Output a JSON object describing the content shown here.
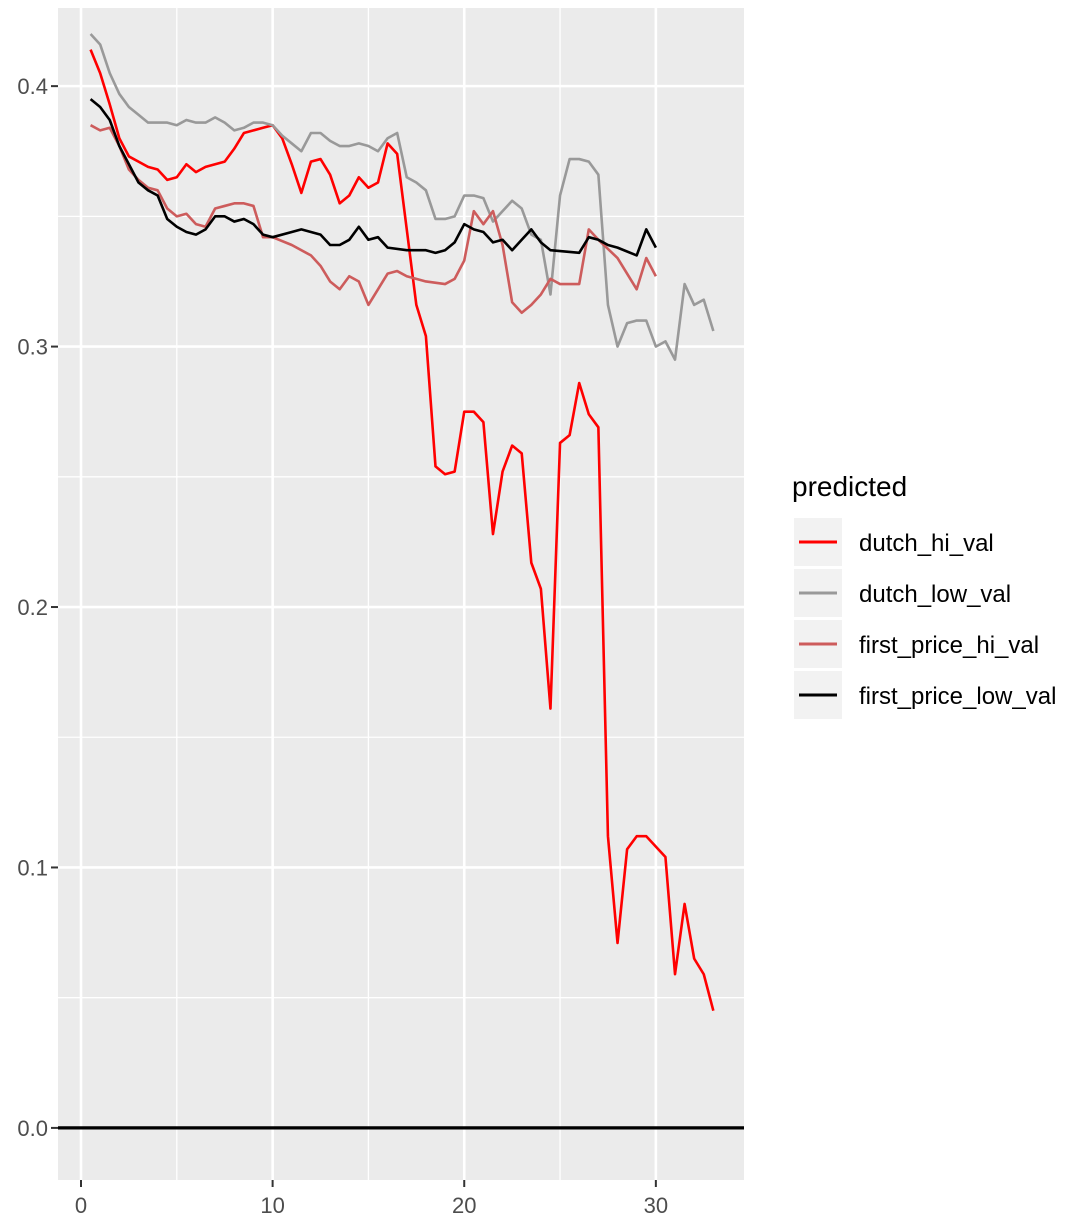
{
  "chart_data": {
    "type": "line",
    "title": "",
    "xlabel": "",
    "ylabel": "",
    "xlim": [
      -1.2,
      34.6
    ],
    "ylim": [
      -0.02,
      0.43
    ],
    "x_ticks": [
      0,
      10,
      20,
      30
    ],
    "x_tick_labels": [
      "0",
      "10",
      "20",
      "30"
    ],
    "y_ticks": [
      0.0,
      0.1,
      0.2,
      0.3,
      0.4
    ],
    "y_tick_labels": [
      "0.0",
      "0.1",
      "0.2",
      "0.3",
      "0.4"
    ],
    "grid": true,
    "hline": {
      "y": 0.0,
      "color": "#000000"
    },
    "legend": {
      "title": "predicted",
      "position": "right"
    },
    "series": [
      {
        "name": "dutch_hi_val",
        "color": "#ff0000",
        "points": [
          [
            0.5,
            0.414
          ],
          [
            1.0,
            0.405
          ],
          [
            1.5,
            0.393
          ],
          [
            2.0,
            0.38
          ],
          [
            2.5,
            0.373
          ],
          [
            3.0,
            0.371
          ],
          [
            3.5,
            0.369
          ],
          [
            4.0,
            0.368
          ],
          [
            4.5,
            0.364
          ],
          [
            5.0,
            0.365
          ],
          [
            5.5,
            0.37
          ],
          [
            6.0,
            0.367
          ],
          [
            6.5,
            0.369
          ],
          [
            7.0,
            0.37
          ],
          [
            7.5,
            0.371
          ],
          [
            8.0,
            0.376
          ],
          [
            8.5,
            0.382
          ],
          [
            9.0,
            0.383
          ],
          [
            9.5,
            0.384
          ],
          [
            10.0,
            0.385
          ],
          [
            10.5,
            0.38
          ],
          [
            11.0,
            0.37
          ],
          [
            11.5,
            0.359
          ],
          [
            12.0,
            0.371
          ],
          [
            12.5,
            0.372
          ],
          [
            13.0,
            0.366
          ],
          [
            13.5,
            0.355
          ],
          [
            14.0,
            0.358
          ],
          [
            14.5,
            0.365
          ],
          [
            15.0,
            0.361
          ],
          [
            15.5,
            0.363
          ],
          [
            16.0,
            0.378
          ],
          [
            16.5,
            0.374
          ],
          [
            17.0,
            0.345
          ],
          [
            17.5,
            0.316
          ],
          [
            18.0,
            0.304
          ],
          [
            18.5,
            0.254
          ],
          [
            19.0,
            0.251
          ],
          [
            19.5,
            0.252
          ],
          [
            20.0,
            0.275
          ],
          [
            20.5,
            0.275
          ],
          [
            21.0,
            0.271
          ],
          [
            21.5,
            0.228
          ],
          [
            22.0,
            0.252
          ],
          [
            22.5,
            0.262
          ],
          [
            23.0,
            0.259
          ],
          [
            23.5,
            0.217
          ],
          [
            24.0,
            0.207
          ],
          [
            24.5,
            0.161
          ],
          [
            25.0,
            0.263
          ],
          [
            25.5,
            0.266
          ],
          [
            26.0,
            0.286
          ],
          [
            26.5,
            0.274
          ],
          [
            27.0,
            0.269
          ],
          [
            27.5,
            0.112
          ],
          [
            28.0,
            0.071
          ],
          [
            28.5,
            0.107
          ],
          [
            29.0,
            0.112
          ],
          [
            29.5,
            0.112
          ],
          [
            30.0,
            0.108
          ],
          [
            30.5,
            0.104
          ],
          [
            31.0,
            0.059
          ],
          [
            31.5,
            0.086
          ],
          [
            32.0,
            0.065
          ],
          [
            32.5,
            0.059
          ],
          [
            33.0,
            0.045
          ]
        ]
      },
      {
        "name": "dutch_low_val",
        "color": "#999999",
        "points": [
          [
            0.5,
            0.42
          ],
          [
            1.0,
            0.416
          ],
          [
            1.5,
            0.405
          ],
          [
            2.0,
            0.397
          ],
          [
            2.5,
            0.392
          ],
          [
            3.0,
            0.389
          ],
          [
            3.5,
            0.386
          ],
          [
            4.0,
            0.386
          ],
          [
            4.5,
            0.386
          ],
          [
            5.0,
            0.385
          ],
          [
            5.5,
            0.387
          ],
          [
            6.0,
            0.386
          ],
          [
            6.5,
            0.386
          ],
          [
            7.0,
            0.388
          ],
          [
            7.5,
            0.386
          ],
          [
            8.0,
            0.383
          ],
          [
            8.5,
            0.384
          ],
          [
            9.0,
            0.386
          ],
          [
            9.5,
            0.386
          ],
          [
            10.0,
            0.385
          ],
          [
            10.5,
            0.381
          ],
          [
            11.0,
            0.378
          ],
          [
            11.5,
            0.375
          ],
          [
            12.0,
            0.382
          ],
          [
            12.5,
            0.382
          ],
          [
            13.0,
            0.379
          ],
          [
            13.5,
            0.377
          ],
          [
            14.0,
            0.377
          ],
          [
            14.5,
            0.378
          ],
          [
            15.0,
            0.377
          ],
          [
            15.5,
            0.375
          ],
          [
            16.0,
            0.38
          ],
          [
            16.5,
            0.382
          ],
          [
            17.0,
            0.365
          ],
          [
            17.5,
            0.363
          ],
          [
            18.0,
            0.36
          ],
          [
            18.5,
            0.349
          ],
          [
            19.0,
            0.349
          ],
          [
            19.5,
            0.35
          ],
          [
            20.0,
            0.358
          ],
          [
            20.5,
            0.358
          ],
          [
            21.0,
            0.357
          ],
          [
            21.5,
            0.348
          ],
          [
            22.0,
            0.352
          ],
          [
            22.5,
            0.356
          ],
          [
            23.0,
            0.353
          ],
          [
            23.5,
            0.343
          ],
          [
            24.0,
            0.341
          ],
          [
            24.5,
            0.32
          ],
          [
            25.0,
            0.358
          ],
          [
            25.5,
            0.372
          ],
          [
            26.0,
            0.372
          ],
          [
            26.5,
            0.371
          ],
          [
            27.0,
            0.366
          ],
          [
            27.5,
            0.316
          ],
          [
            28.0,
            0.3
          ],
          [
            28.5,
            0.309
          ],
          [
            29.0,
            0.31
          ],
          [
            29.5,
            0.31
          ],
          [
            30.0,
            0.3
          ],
          [
            30.5,
            0.302
          ],
          [
            31.0,
            0.295
          ],
          [
            31.5,
            0.324
          ],
          [
            32.0,
            0.316
          ],
          [
            32.5,
            0.318
          ],
          [
            33.0,
            0.306
          ]
        ]
      },
      {
        "name": "first_price_hi_val",
        "color": "#cd5c5c",
        "points": [
          [
            0.5,
            0.385
          ],
          [
            1.0,
            0.383
          ],
          [
            1.5,
            0.384
          ],
          [
            2.0,
            0.377
          ],
          [
            2.5,
            0.368
          ],
          [
            3.0,
            0.364
          ],
          [
            3.5,
            0.361
          ],
          [
            4.0,
            0.36
          ],
          [
            4.5,
            0.353
          ],
          [
            5.0,
            0.35
          ],
          [
            5.5,
            0.351
          ],
          [
            6.0,
            0.347
          ],
          [
            6.5,
            0.346
          ],
          [
            7.0,
            0.353
          ],
          [
            7.5,
            0.354
          ],
          [
            8.0,
            0.355
          ],
          [
            8.5,
            0.355
          ],
          [
            9.0,
            0.354
          ],
          [
            9.5,
            0.342
          ],
          [
            10.0,
            0.342
          ],
          [
            11.0,
            0.339
          ],
          [
            12.0,
            0.335
          ],
          [
            12.5,
            0.331
          ],
          [
            13.0,
            0.325
          ],
          [
            13.5,
            0.322
          ],
          [
            14.0,
            0.327
          ],
          [
            14.5,
            0.325
          ],
          [
            15.0,
            0.316
          ],
          [
            15.5,
            0.322
          ],
          [
            16.0,
            0.328
          ],
          [
            16.5,
            0.329
          ],
          [
            17.0,
            0.327
          ],
          [
            18.0,
            0.325
          ],
          [
            19.0,
            0.324
          ],
          [
            19.5,
            0.326
          ],
          [
            20.0,
            0.333
          ],
          [
            20.5,
            0.352
          ],
          [
            21.0,
            0.347
          ],
          [
            21.5,
            0.352
          ],
          [
            22.0,
            0.339
          ],
          [
            22.5,
            0.317
          ],
          [
            23.0,
            0.313
          ],
          [
            23.5,
            0.316
          ],
          [
            24.0,
            0.32
          ],
          [
            24.5,
            0.326
          ],
          [
            25.0,
            0.324
          ],
          [
            26.0,
            0.324
          ],
          [
            26.5,
            0.345
          ],
          [
            27.0,
            0.341
          ],
          [
            28.0,
            0.334
          ],
          [
            29.0,
            0.322
          ],
          [
            29.5,
            0.334
          ],
          [
            30.0,
            0.327
          ]
        ]
      },
      {
        "name": "first_price_low_val",
        "color": "#000000",
        "points": [
          [
            0.5,
            0.395
          ],
          [
            1.0,
            0.392
          ],
          [
            1.5,
            0.387
          ],
          [
            2.0,
            0.377
          ],
          [
            2.5,
            0.37
          ],
          [
            3.0,
            0.363
          ],
          [
            3.5,
            0.36
          ],
          [
            4.0,
            0.358
          ],
          [
            4.5,
            0.349
          ],
          [
            5.0,
            0.346
          ],
          [
            5.5,
            0.344
          ],
          [
            6.0,
            0.343
          ],
          [
            6.5,
            0.345
          ],
          [
            7.0,
            0.35
          ],
          [
            7.5,
            0.35
          ],
          [
            8.0,
            0.348
          ],
          [
            8.5,
            0.349
          ],
          [
            9.0,
            0.347
          ],
          [
            9.5,
            0.343
          ],
          [
            10.0,
            0.342
          ],
          [
            11.0,
            0.344
          ],
          [
            11.5,
            0.345
          ],
          [
            12.0,
            0.344
          ],
          [
            12.5,
            0.343
          ],
          [
            13.0,
            0.339
          ],
          [
            13.5,
            0.339
          ],
          [
            14.0,
            0.341
          ],
          [
            14.5,
            0.346
          ],
          [
            15.0,
            0.341
          ],
          [
            15.5,
            0.342
          ],
          [
            16.0,
            0.338
          ],
          [
            17.0,
            0.337
          ],
          [
            18.0,
            0.337
          ],
          [
            18.5,
            0.336
          ],
          [
            19.0,
            0.337
          ],
          [
            19.5,
            0.34
          ],
          [
            20.0,
            0.347
          ],
          [
            20.5,
            0.345
          ],
          [
            21.0,
            0.344
          ],
          [
            21.5,
            0.34
          ],
          [
            22.0,
            0.341
          ],
          [
            22.5,
            0.337
          ],
          [
            23.0,
            0.341
          ],
          [
            23.5,
            0.345
          ],
          [
            24.0,
            0.34
          ],
          [
            24.5,
            0.337
          ],
          [
            26.0,
            0.336
          ],
          [
            26.5,
            0.342
          ],
          [
            27.0,
            0.341
          ],
          [
            27.5,
            0.339
          ],
          [
            28.0,
            0.338
          ],
          [
            29.0,
            0.335
          ],
          [
            29.5,
            0.345
          ],
          [
            30.0,
            0.338
          ]
        ]
      }
    ]
  }
}
